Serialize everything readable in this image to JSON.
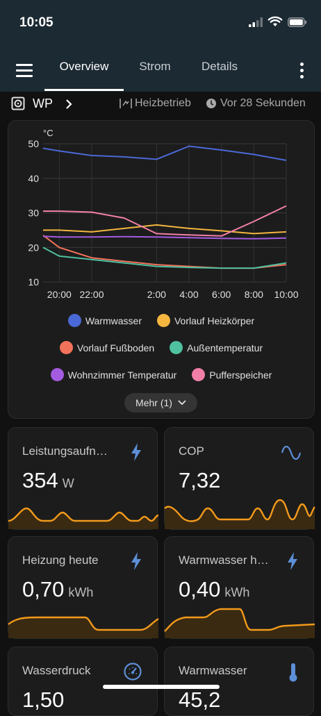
{
  "status_bar": {
    "time": "10:05"
  },
  "tabs": [
    {
      "label": "Overview",
      "active": true
    },
    {
      "label": "Strom",
      "active": false
    },
    {
      "label": "Details",
      "active": false
    }
  ],
  "device": {
    "name": "WP",
    "mode": "Heizbetrieb",
    "last_update": "Vor 28 Sekunden"
  },
  "chart_data": {
    "type": "line",
    "ylabel": "°C",
    "ylim": [
      10,
      50
    ],
    "yticks": [
      "10",
      "20",
      "30",
      "40",
      "50"
    ],
    "xticks": [
      "20:00",
      "22:00",
      "2:00",
      "4:00",
      "6:00",
      "8:00",
      "10:00"
    ],
    "x_hours": [
      19,
      20,
      22,
      24,
      26,
      28,
      30,
      32,
      34
    ],
    "series": [
      {
        "name": "Warmwasser",
        "color": "#4a69d6",
        "values": [
          48.7,
          47.9,
          46.6,
          46.2,
          45.5,
          49.3,
          48.2,
          46.9,
          45.2
        ]
      },
      {
        "name": "Vorlauf Heizkörper",
        "color": "#f4b63f",
        "values": [
          25,
          25,
          24.5,
          25.5,
          26.5,
          25.5,
          24.8,
          24,
          24.5
        ]
      },
      {
        "name": "Vorlauf Fußboden",
        "color": "#f2725a",
        "values": [
          23.5,
          20,
          17,
          16,
          15,
          14.5,
          14,
          14,
          15
        ]
      },
      {
        "name": "Außentemperatur",
        "color": "#4fc0a0",
        "values": [
          20,
          17.5,
          16.5,
          15.5,
          14.5,
          14.2,
          14,
          14,
          15.5
        ]
      },
      {
        "name": "Wohnzimmer Temperatur",
        "color": "#a35be0",
        "values": [
          23.2,
          23,
          23,
          23.1,
          23,
          22.8,
          22.6,
          22.5,
          22.7
        ]
      },
      {
        "name": "Pufferspeicher",
        "color": "#f27fa8",
        "values": [
          30.5,
          30.5,
          30.2,
          28.5,
          24,
          23.6,
          23.3,
          27.5,
          32
        ]
      }
    ],
    "legend_rows": [
      [
        "Warmwasser",
        "Vorlauf Heizkörper"
      ],
      [
        "Vorlauf Fußboden",
        "Außentemperatur"
      ],
      [
        "Wohnzimmer Temperatur",
        "Pufferspeicher"
      ]
    ],
    "more_label": "Mehr (1)"
  },
  "tiles": [
    {
      "title": "Leistungsaufn…",
      "value": "354",
      "unit": "W",
      "icon": "lightning-icon"
    },
    {
      "title": "COP",
      "value": "7,32",
      "unit": "",
      "icon": "sine-wave-icon"
    },
    {
      "title": "Heizung heute",
      "value": "0,70",
      "unit": "kWh",
      "icon": "lightning-icon"
    },
    {
      "title": "Warmwasser h…",
      "value": "0,40",
      "unit": "kWh",
      "icon": "lightning-icon"
    },
    {
      "title": "Wasserdruck",
      "value": "1,50",
      "unit": "",
      "icon": "gauge-icon"
    },
    {
      "title": "Warmwasser",
      "value": "45,2",
      "unit": "",
      "icon": "thermometer-icon"
    }
  ],
  "colors": {
    "accent": "#f29a1b",
    "icon_blue": "#5d8fd8",
    "background": "#111111",
    "card": "#1c1c1c"
  }
}
